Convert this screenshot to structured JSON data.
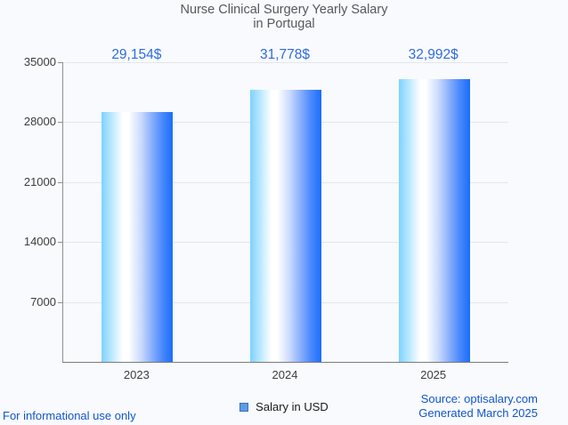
{
  "title": {
    "line1": "Nurse Clinical Surgery Yearly Salary",
    "line2": "in Portugal"
  },
  "chart_data": {
    "type": "bar",
    "categories": [
      "2023",
      "2024",
      "2025"
    ],
    "values": [
      29154,
      31778,
      32992
    ],
    "value_labels": [
      "29,154$",
      "31,778$",
      "32,992$"
    ],
    "series": [
      {
        "name": "Salary in USD",
        "values": [
          29154,
          31778,
          32992
        ]
      }
    ],
    "title": "Nurse Clinical Surgery Yearly Salary in Portugal",
    "xlabel": "",
    "ylabel": "",
    "ylim": [
      0,
      35000
    ],
    "ytick_labels": [
      "35000",
      "28000",
      "21000",
      "14000",
      "7000"
    ],
    "yticks": [
      35000,
      28000,
      21000,
      14000,
      7000
    ],
    "grid": true,
    "legend_position": "bottom",
    "bar_gradient": [
      "#7ed2fe",
      "#ffffff",
      "#1a6dfd"
    ],
    "value_label_color": "#2e6ce0",
    "background_color": "#f8fafd",
    "gridline_color": "#e4e6e9"
  },
  "legend": {
    "label": "Salary in USD",
    "marker_fill": "#5c9ce4",
    "marker_border": "#3a72b8"
  },
  "footer": {
    "left": "For informational use only",
    "source": "Source: optisalary.com",
    "generated": "Generated March 2025",
    "link_color": "#1155cc"
  }
}
